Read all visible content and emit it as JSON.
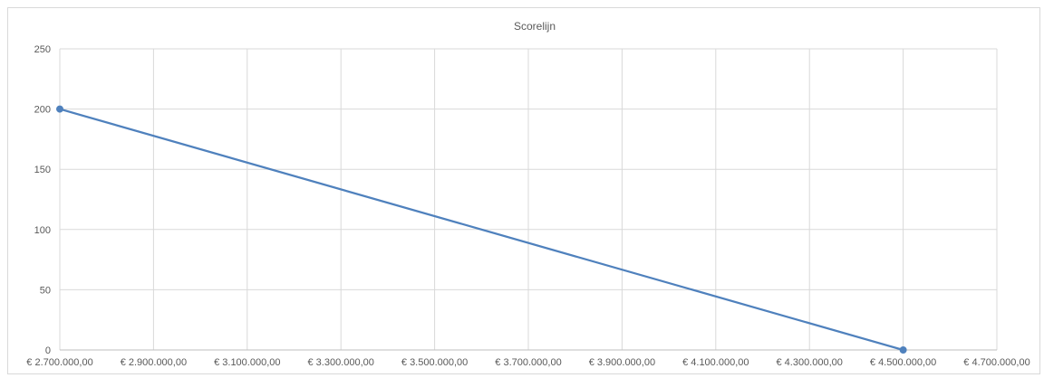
{
  "chart_data": {
    "type": "scatter",
    "title": "Scorelijn",
    "xlabel": "",
    "ylabel": "",
    "xlim": [
      2700000,
      4700000
    ],
    "ylim": [
      0,
      250
    ],
    "x_ticks": [
      2700000,
      2900000,
      3100000,
      3300000,
      3500000,
      3700000,
      3900000,
      4100000,
      4300000,
      4500000,
      4700000
    ],
    "x_tick_labels": [
      "€ 2.700.000,00",
      "€ 2.900.000,00",
      "€ 3.100.000,00",
      "€ 3.300.000,00",
      "€ 3.500.000,00",
      "€ 3.700.000,00",
      "€ 3.900.000,00",
      "€ 4.100.000,00",
      "€ 4.300.000,00",
      "€ 4.500.000,00",
      "€ 4.700.000,00"
    ],
    "y_ticks": [
      0,
      50,
      100,
      150,
      200,
      250
    ],
    "y_tick_labels": [
      "0",
      "50",
      "100",
      "150",
      "200",
      "250"
    ],
    "grid": true,
    "legend": "none",
    "series": [
      {
        "x": [
          2700000,
          4500000
        ],
        "y": [
          200,
          0
        ],
        "color": "#4f81bd",
        "style": "line with markers"
      }
    ],
    "colors": {
      "series": "#4f81bd",
      "grid": "#d9d9d9",
      "axis": "#bfbfbf",
      "text": "#595959"
    }
  }
}
